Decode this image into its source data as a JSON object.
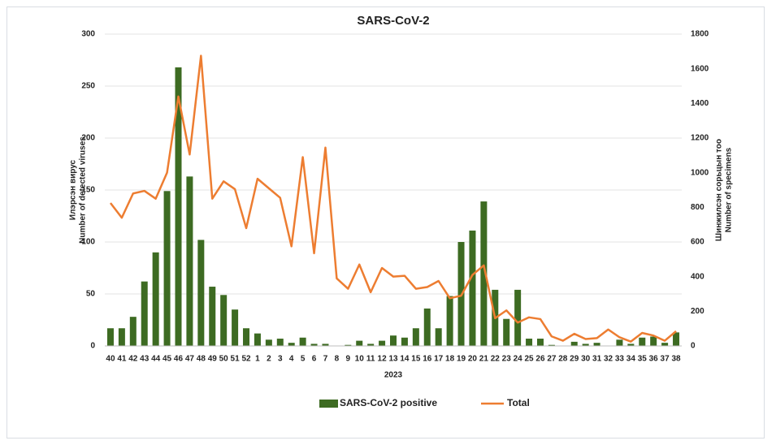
{
  "chart_data": {
    "type": "bar_line",
    "title": "SARS-CoV-2",
    "x_label": "2023",
    "y_label": [
      "Илэрсэн вирус",
      "Number of detected viruses"
    ],
    "y2_label": [
      "Шинжилсэн сорьцын тоо",
      "Number of specimens"
    ],
    "categories": [
      "40",
      "41",
      "42",
      "43",
      "44",
      "45",
      "46",
      "47",
      "48",
      "49",
      "50",
      "51",
      "52",
      "1",
      "2",
      "3",
      "4",
      "5",
      "6",
      "7",
      "8",
      "9",
      "10",
      "11",
      "12",
      "13",
      "14",
      "15",
      "16",
      "17",
      "18",
      "19",
      "20",
      "21",
      "22",
      "23",
      "24",
      "25",
      "26",
      "27",
      "28",
      "29",
      "30",
      "31",
      "32",
      "33",
      "34",
      "35",
      "36",
      "37",
      "38"
    ],
    "series": [
      {
        "name": "SARS-CoV-2 positive",
        "type": "bar",
        "color": "#3d6b22",
        "values": [
          17,
          17,
          28,
          62,
          90,
          149,
          268,
          163,
          102,
          57,
          49,
          35,
          17,
          12,
          6,
          7,
          3,
          8,
          2,
          2,
          0,
          1,
          5,
          2,
          5,
          10,
          8,
          17,
          36,
          17,
          48,
          100,
          111,
          139,
          54,
          26,
          54,
          7,
          7,
          1,
          0,
          4,
          2,
          3,
          0,
          6,
          2,
          8,
          9,
          3,
          13
        ]
      },
      {
        "name": "Total",
        "type": "line",
        "axis": "y2",
        "color": "#ed7d31",
        "values": [
          825,
          740,
          880,
          895,
          850,
          1000,
          1440,
          1105,
          1675,
          850,
          950,
          905,
          680,
          965,
          910,
          855,
          575,
          1090,
          535,
          1145,
          390,
          330,
          470,
          310,
          450,
          400,
          405,
          330,
          340,
          375,
          275,
          290,
          410,
          465,
          160,
          205,
          135,
          165,
          155,
          55,
          30,
          70,
          40,
          45,
          95,
          50,
          25,
          75,
          60,
          30,
          85
        ]
      }
    ],
    "ylim": [
      0,
      300
    ],
    "yticks": [
      0,
      50,
      100,
      150,
      200,
      250,
      300
    ],
    "y2lim": [
      0,
      1800
    ],
    "y2ticks": [
      0,
      200,
      400,
      600,
      800,
      1000,
      1200,
      1400,
      1600,
      1800
    ],
    "grid": true,
    "legend": "bottom"
  }
}
